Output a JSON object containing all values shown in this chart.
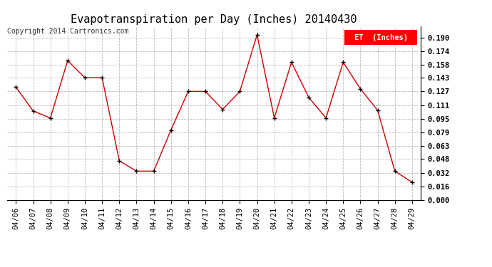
{
  "title": "Evapotranspiration per Day (Inches) 20140430",
  "copyright": "Copyright 2014 Cartronics.com",
  "legend_label": "ET  (Inches)",
  "legend_bg": "#ff0000",
  "legend_text_color": "#ffffff",
  "dates": [
    "04/06",
    "04/07",
    "04/08",
    "04/09",
    "04/10",
    "04/11",
    "04/12",
    "04/13",
    "04/14",
    "04/15",
    "04/16",
    "04/17",
    "04/18",
    "04/19",
    "04/20",
    "04/21",
    "04/22",
    "04/23",
    "04/24",
    "04/25",
    "04/26",
    "04/27",
    "04/28",
    "04/29"
  ],
  "values": [
    0.132,
    0.104,
    0.096,
    0.163,
    0.143,
    0.143,
    0.046,
    0.034,
    0.034,
    0.082,
    0.127,
    0.127,
    0.106,
    0.127,
    0.193,
    0.096,
    0.161,
    0.12,
    0.096,
    0.161,
    0.13,
    0.105,
    0.034,
    0.021
  ],
  "ylim": [
    0.0,
    0.2025
  ],
  "yticks": [
    0.0,
    0.016,
    0.032,
    0.048,
    0.063,
    0.079,
    0.095,
    0.111,
    0.127,
    0.143,
    0.158,
    0.174,
    0.19
  ],
  "line_color": "#cc0000",
  "marker": "+",
  "marker_color": "#000000",
  "marker_size": 4,
  "marker_lw": 1.0,
  "line_width": 1.0,
  "bg_color": "#ffffff",
  "grid_color": "#bbbbbb",
  "title_fontsize": 11,
  "copyright_fontsize": 7,
  "tick_fontsize": 7.5,
  "legend_fontsize": 7.5
}
